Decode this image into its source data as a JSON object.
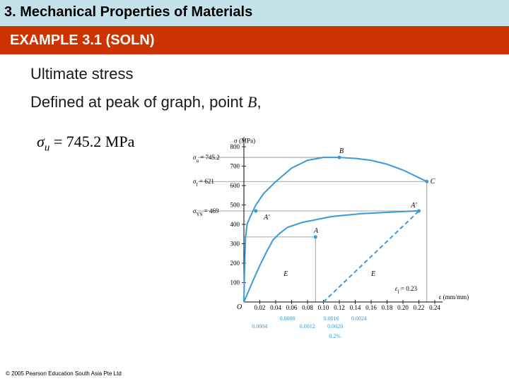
{
  "header": {
    "chapter_title": "3. Mechanical Properties of Materials",
    "example_title": "EXAMPLE 3.1 (SOLN)"
  },
  "body": {
    "line1": "Ultimate stress",
    "line2_prefix": "Defined at peak of graph, point ",
    "line2_point": "B",
    "line2_suffix": ",",
    "equation": {
      "symbol": "σ",
      "subscript": "u",
      "rest": " = 745.2 MPa"
    }
  },
  "footer": {
    "copyright": "© 2005 Pearson Education South Asia Pte Ltd"
  },
  "chart_data": {
    "type": "line",
    "ylabel": "σ (MPa)",
    "xlabel": "ε (mm/mm)",
    "origin_label": "O",
    "x_ticks": [
      0.02,
      0.04,
      0.06,
      0.08,
      0.1,
      0.12,
      0.14,
      0.16,
      0.18,
      0.2,
      0.22,
      0.24
    ],
    "x_tick_labels": [
      "0.02",
      "0.04",
      "0.06",
      "0.08",
      "0.10",
      "0.12",
      "0.14",
      "0.16",
      "0.18",
      "0.20",
      "0.22",
      "0.24"
    ],
    "y_ticks": [
      100,
      200,
      300,
      400,
      500,
      600,
      700,
      800
    ],
    "y_tick_labels": [
      "100",
      "200",
      "300",
      "400",
      "500",
      "600",
      "700",
      "800"
    ],
    "strain_labels": [
      "0.0008",
      "0.0016",
      "0.0024",
      "0.0004",
      "0.0012",
      "0.0020",
      "0.2%"
    ],
    "annotations": [
      {
        "sym": "σ",
        "sub": "u",
        "text": " = 745.2",
        "y": 745.2
      },
      {
        "sym": "σ",
        "sub": "f",
        "text": " = 621",
        "y": 621
      },
      {
        "sym": "σ",
        "sub": "YS",
        "text": " = 469",
        "y": 469
      }
    ],
    "fracture_label": {
      "sym": "ε",
      "sub": "f",
      "text": " = 0.23"
    },
    "point_labels": [
      "B",
      "C",
      "A′",
      "A′",
      "A",
      "E",
      "E"
    ],
    "colors": {
      "curve": "#3a9ad9",
      "guide": "#888888",
      "strain_labels": "#3a9ad9"
    },
    "series": [
      {
        "name": "",
        "x": [
          0,
          0.001,
          0.002,
          0.004,
          0.008,
          0.015,
          0.025,
          0.04,
          0.06,
          0.08,
          0.1,
          0.12,
          0.14,
          0.16,
          0.18,
          0.2,
          0.23
        ],
        "y": [
          0,
          200,
          330,
          400,
          440,
          500,
          560,
          620,
          690,
          730,
          745,
          745.2,
          740,
          730,
          710,
          680,
          621
        ]
      },
      {
        "name": "",
        "x": [
          0,
          0.0004,
          0.0008,
          0.0012,
          0.0016,
          0.002,
          0.0024,
          0.003,
          0.004,
          0.006,
          0.008,
          0.012
        ],
        "y": [
          0,
          70,
          140,
          205,
          265,
          320,
          350,
          385,
          410,
          440,
          455,
          470
        ]
      }
    ],
    "xlim": [
      0,
      0.24
    ],
    "ylim": [
      0,
      800
    ]
  }
}
